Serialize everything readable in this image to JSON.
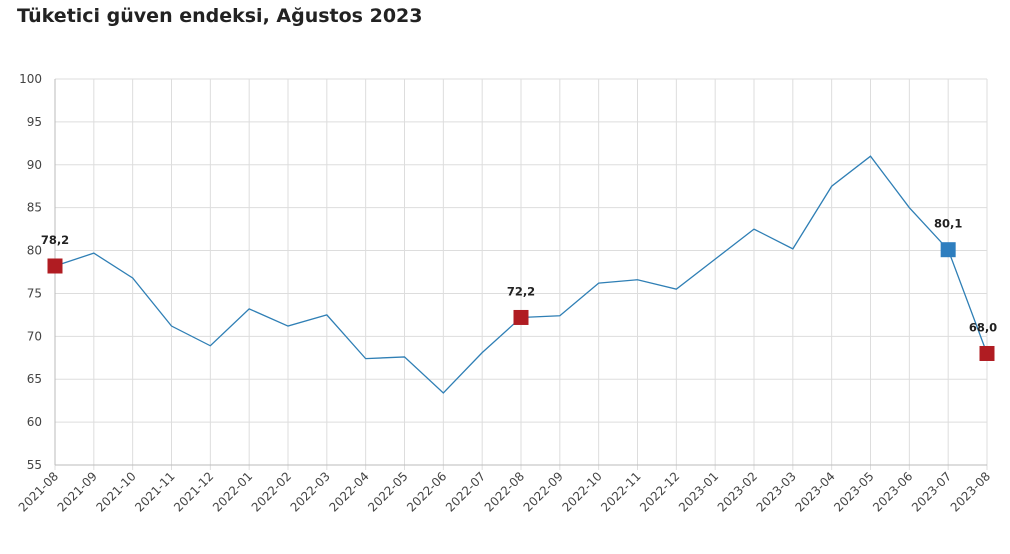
{
  "chart_data": {
    "type": "line",
    "title": "Tüketici güven endeksi, Ağustos 2023",
    "xlabel": "",
    "ylabel": "",
    "ylim": [
      55,
      100
    ],
    "yticks": [
      "55",
      "60",
      "65",
      "70",
      "75",
      "80",
      "85",
      "90",
      "95",
      "100"
    ],
    "grid": true,
    "categories": [
      "2021-08",
      "2021-09",
      "2021-10",
      "2021-11",
      "2021-12",
      "2022-01",
      "2022-02",
      "2022-03",
      "2022-04",
      "2022-05",
      "2022-06",
      "2022-07",
      "2022-08",
      "2022-09",
      "2022-10",
      "2022-11",
      "2022-12",
      "2023-01",
      "2023-02",
      "2023-03",
      "2023-04",
      "2023-05",
      "2023-06",
      "2023-07",
      "2023-08"
    ],
    "series": [
      {
        "name": "Tüketici güven endeksi",
        "values": [
          78.2,
          79.7,
          76.8,
          71.2,
          68.9,
          73.2,
          71.2,
          72.5,
          67.4,
          67.6,
          63.4,
          68.1,
          72.2,
          72.4,
          76.2,
          76.6,
          75.5,
          79.0,
          82.5,
          80.2,
          87.5,
          91.0,
          85.0,
          80.1,
          68.0
        ]
      }
    ],
    "markers": [
      {
        "index": 0,
        "label": "78,2",
        "color": "#b01c22"
      },
      {
        "index": 12,
        "label": "72,2",
        "color": "#b01c22"
      },
      {
        "index": 23,
        "label": "80,1",
        "color": "#2e7ebf"
      },
      {
        "index": 24,
        "label": "68,0",
        "color": "#b01c22"
      }
    ],
    "line_color": "#2f7fb5"
  }
}
